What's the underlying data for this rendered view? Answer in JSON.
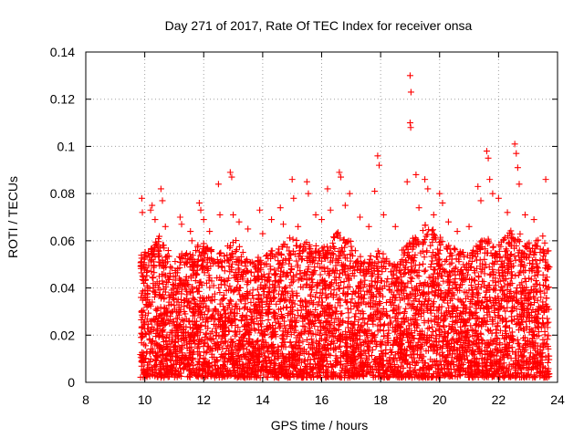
{
  "chart_data": {
    "type": "scatter",
    "title": "Day 271 of 2017, Rate Of TEC Index for receiver onsa",
    "xlabel": "GPS time / hours",
    "ylabel": "ROTI / TECUs",
    "xlim": [
      8,
      24
    ],
    "ylim": [
      0,
      0.14
    ],
    "xticks": [
      "8",
      "10",
      "12",
      "14",
      "16",
      "18",
      "20",
      "22",
      "24"
    ],
    "yticks": [
      "0",
      "0.02",
      "0.04",
      "0.06",
      "0.08",
      "0.1",
      "0.12",
      "0.14"
    ],
    "grid": true,
    "marker": "+",
    "color": "#ff0000",
    "series": [
      {
        "points": [
          [
            9.9,
            0.078
          ],
          [
            9.92,
            0.072
          ],
          [
            10.2,
            0.073
          ],
          [
            10.25,
            0.075
          ],
          [
            10.35,
            0.069
          ],
          [
            10.55,
            0.082
          ],
          [
            10.6,
            0.077
          ],
          [
            10.7,
            0.066
          ],
          [
            11.2,
            0.07
          ],
          [
            11.25,
            0.067
          ],
          [
            11.55,
            0.064
          ],
          [
            11.6,
            0.06
          ],
          [
            11.85,
            0.076
          ],
          [
            11.9,
            0.073
          ],
          [
            12.0,
            0.069
          ],
          [
            12.2,
            0.064
          ],
          [
            12.5,
            0.084
          ],
          [
            12.55,
            0.071
          ],
          [
            12.9,
            0.089
          ],
          [
            12.95,
            0.087
          ],
          [
            13.0,
            0.071
          ],
          [
            13.2,
            0.068
          ],
          [
            13.5,
            0.065
          ],
          [
            13.9,
            0.073
          ],
          [
            14.0,
            0.063
          ],
          [
            14.3,
            0.069
          ],
          [
            14.6,
            0.074
          ],
          [
            14.7,
            0.067
          ],
          [
            15.0,
            0.086
          ],
          [
            15.05,
            0.078
          ],
          [
            15.2,
            0.066
          ],
          [
            15.5,
            0.085
          ],
          [
            15.55,
            0.08
          ],
          [
            15.8,
            0.071
          ],
          [
            16.0,
            0.069
          ],
          [
            16.2,
            0.082
          ],
          [
            16.3,
            0.073
          ],
          [
            16.6,
            0.089
          ],
          [
            16.65,
            0.087
          ],
          [
            16.8,
            0.075
          ],
          [
            16.95,
            0.08
          ],
          [
            17.3,
            0.07
          ],
          [
            17.6,
            0.066
          ],
          [
            17.8,
            0.081
          ],
          [
            17.9,
            0.096
          ],
          [
            17.95,
            0.092
          ],
          [
            18.1,
            0.071
          ],
          [
            18.5,
            0.066
          ],
          [
            18.9,
            0.085
          ],
          [
            19.0,
            0.13
          ],
          [
            19.03,
            0.123
          ],
          [
            19.0,
            0.11
          ],
          [
            19.02,
            0.108
          ],
          [
            19.2,
            0.088
          ],
          [
            19.3,
            0.074
          ],
          [
            19.5,
            0.086
          ],
          [
            19.6,
            0.082
          ],
          [
            19.8,
            0.071
          ],
          [
            20.0,
            0.08
          ],
          [
            20.1,
            0.076
          ],
          [
            20.3,
            0.068
          ],
          [
            20.6,
            0.064
          ],
          [
            21.0,
            0.066
          ],
          [
            21.3,
            0.083
          ],
          [
            21.4,
            0.077
          ],
          [
            21.6,
            0.098
          ],
          [
            21.65,
            0.095
          ],
          [
            21.7,
            0.086
          ],
          [
            21.8,
            0.08
          ],
          [
            22.0,
            0.078
          ],
          [
            22.3,
            0.072
          ],
          [
            22.55,
            0.101
          ],
          [
            22.6,
            0.097
          ],
          [
            22.65,
            0.091
          ],
          [
            22.7,
            0.084
          ],
          [
            22.9,
            0.071
          ],
          [
            23.2,
            0.069
          ],
          [
            23.5,
            0.062
          ],
          [
            23.6,
            0.086
          ]
        ]
      }
    ]
  }
}
